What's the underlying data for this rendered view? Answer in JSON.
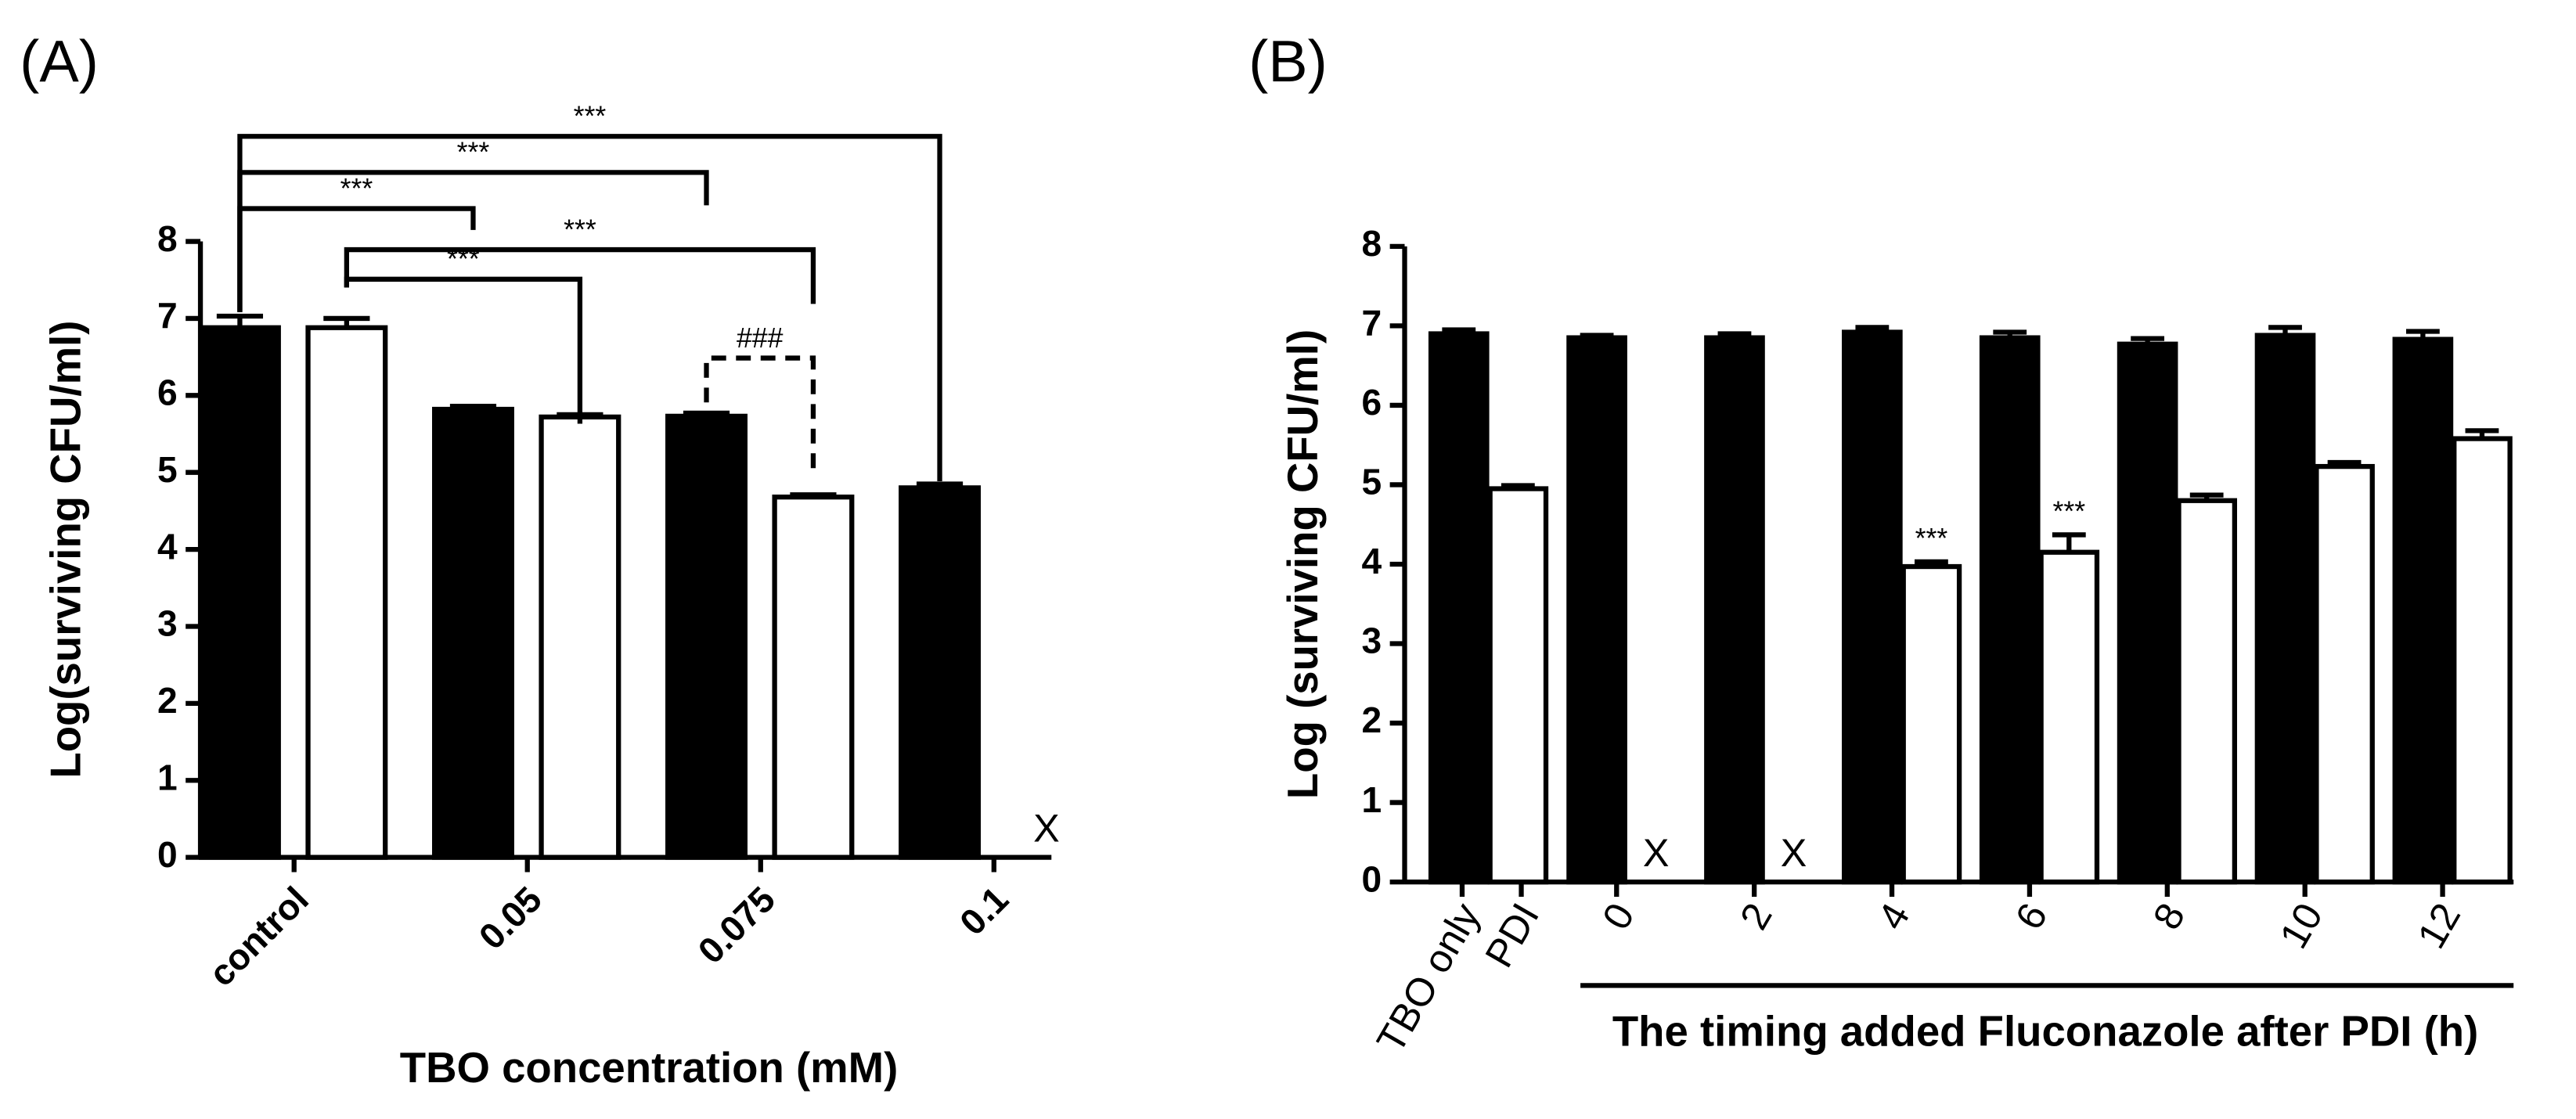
{
  "chart_data": [
    {
      "type": "bar",
      "panel_label": "(A)",
      "categories": [
        "control",
        "0.05",
        "0.075",
        "0.1"
      ],
      "series": [
        {
          "color": "#000000",
          "values": [
            6.88,
            5.82,
            5.73,
            4.8
          ],
          "errors": [
            0.15,
            0.04,
            0.04,
            0.05
          ]
        },
        {
          "color": "#ffffff",
          "values": [
            6.88,
            5.72,
            4.68,
            null
          ],
          "errors": [
            0.12,
            0.03,
            0.03,
            null
          ]
        }
      ],
      "missing_label": "X",
      "ylim": [
        0,
        8
      ],
      "yticks": [
        0,
        1,
        2,
        3,
        4,
        5,
        6,
        7,
        8
      ],
      "y_label": "Log(surviving CFU/ml)",
      "x_label": "TBO concentration (mM)",
      "brackets": [
        {
          "label": "***",
          "from": [
            0,
            0
          ],
          "to": [
            3,
            0
          ]
        },
        {
          "label": "***",
          "from": [
            0,
            0
          ],
          "to": [
            2,
            0
          ]
        },
        {
          "label": "***",
          "from": [
            0,
            0
          ],
          "to": [
            1,
            0
          ]
        },
        {
          "label": "***",
          "from": [
            0,
            1
          ],
          "to": [
            2,
            1
          ]
        },
        {
          "label": "***",
          "from": [
            0,
            1
          ],
          "to": [
            1,
            1
          ]
        },
        {
          "label": "###",
          "from": [
            2,
            0
          ],
          "to": [
            2,
            1
          ],
          "dashed": true
        }
      ]
    },
    {
      "type": "bar",
      "panel_label": "(B)",
      "categories": [
        null,
        "0",
        "2",
        "4",
        "6",
        "8",
        "10",
        "12"
      ],
      "first_group_labels": [
        "TBO only",
        "PDI"
      ],
      "series": [
        {
          "color": "#000000",
          "values": [
            6.9,
            6.85,
            6.85,
            6.92,
            6.85,
            6.77,
            6.88,
            6.83
          ],
          "errors": [
            0.05,
            0.03,
            0.05,
            0.06,
            0.07,
            0.07,
            0.1,
            0.1
          ]
        },
        {
          "color": "#ffffff",
          "values": [
            4.95,
            null,
            null,
            3.97,
            4.15,
            4.8,
            5.23,
            5.58
          ],
          "errors": [
            0.04,
            null,
            null,
            0.06,
            0.22,
            0.07,
            0.05,
            0.1
          ]
        }
      ],
      "missing_label": "X",
      "markers": [
        {
          "label": "***",
          "group": 3
        },
        {
          "label": "***",
          "group": 4
        }
      ],
      "ylim": [
        0,
        8
      ],
      "yticks": [
        0,
        1,
        2,
        3,
        4,
        5,
        6,
        7,
        8
      ],
      "y_label": "Log (surviving CFU/ml)",
      "x_label": "The timing added Fluconazole after PDI (h)"
    }
  ]
}
